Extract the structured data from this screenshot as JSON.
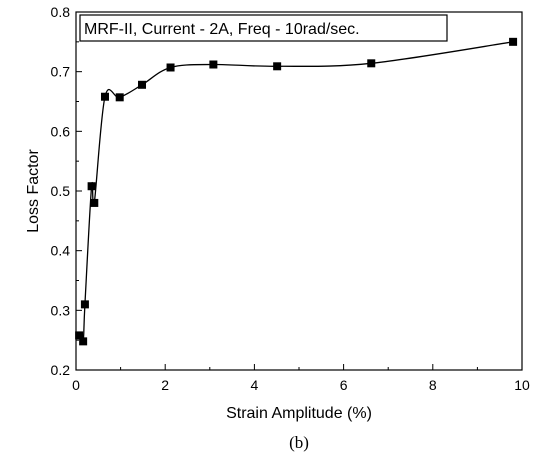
{
  "chart_data": {
    "type": "line",
    "legend": "MRF-II, Current - 2A, Freq - 10rad/sec.",
    "legend_position": "top-left",
    "xlabel": "Strain Amplitude (%)",
    "ylabel": "Loss Factor",
    "caption": "(b)",
    "xlim": [
      0,
      10
    ],
    "ylim": [
      0.2,
      0.8
    ],
    "xticks": [
      "0",
      "2",
      "4",
      "6",
      "8",
      "10"
    ],
    "yticks": [
      "0.2",
      "0.3",
      "0.4",
      "0.5",
      "0.6",
      "0.7",
      "0.8"
    ],
    "grid": false,
    "marker": "square",
    "line_color": "#000000",
    "x": [
      0.07,
      0.16,
      0.2,
      0.35,
      0.41,
      0.65,
      0.98,
      1.48,
      2.12,
      3.08,
      4.51,
      6.62,
      9.8
    ],
    "y": [
      0.258,
      0.248,
      0.31,
      0.508,
      0.48,
      0.658,
      0.657,
      0.678,
      0.707,
      0.712,
      0.709,
      0.714,
      0.75
    ]
  }
}
